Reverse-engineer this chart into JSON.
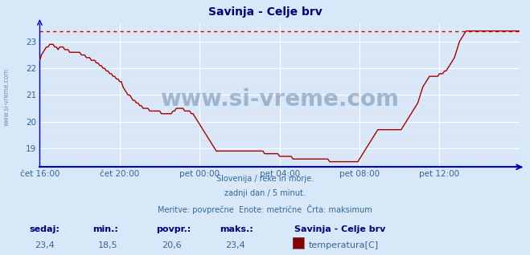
{
  "title": "Savinja - Celje brv",
  "title_color": "#000080",
  "bg_color": "#d8e8f8",
  "plot_bg_color": "#d8e8f8",
  "line_color": "#aa0000",
  "max_line_color": "#cc0000",
  "axis_color": "#0000cc",
  "tick_color": "#336699",
  "grid_color": "#ffffff",
  "grid_minor_color": "#ffcccc",
  "watermark": "www.si-vreme.com",
  "watermark_color": "#1a3a6a",
  "subtitle_lines": [
    "Slovenija / reke in morje.",
    "zadnji dan / 5 minut.",
    "Meritve: povprečne  Enote: metrične  Črta: maksimum"
  ],
  "subtitle_color": "#336699",
  "legend_title": "Savinja - Celje brv",
  "legend_label": "temperatura[C]",
  "legend_color": "#880000",
  "stats_labels": [
    "sedaj:",
    "min.:",
    "povpr.:",
    "maks.:"
  ],
  "stats_values": [
    "23,4",
    "18,5",
    "20,6",
    "23,4"
  ],
  "stats_label_color": "#000080",
  "stats_value_color": "#336699",
  "ylim": [
    18.3,
    23.7
  ],
  "yticks": [
    19,
    20,
    21,
    22,
    23
  ],
  "max_value": 23.4,
  "xtick_labels": [
    "čet 16:00",
    "čet 20:00",
    "pet 00:00",
    "pet 04:00",
    "pet 08:00",
    "pet 12:00"
  ],
  "xtick_positions": [
    0,
    48,
    96,
    144,
    192,
    240
  ],
  "total_points": 289,
  "temperature_data": [
    22.3,
    22.5,
    22.6,
    22.7,
    22.8,
    22.8,
    22.9,
    22.9,
    22.9,
    22.8,
    22.8,
    22.7,
    22.8,
    22.8,
    22.8,
    22.7,
    22.7,
    22.7,
    22.6,
    22.6,
    22.6,
    22.6,
    22.6,
    22.6,
    22.6,
    22.5,
    22.5,
    22.5,
    22.4,
    22.4,
    22.4,
    22.3,
    22.3,
    22.3,
    22.2,
    22.2,
    22.1,
    22.1,
    22.0,
    22.0,
    21.9,
    21.9,
    21.8,
    21.8,
    21.7,
    21.7,
    21.6,
    21.6,
    21.5,
    21.5,
    21.3,
    21.2,
    21.1,
    21.0,
    21.0,
    20.9,
    20.8,
    20.8,
    20.7,
    20.7,
    20.6,
    20.6,
    20.5,
    20.5,
    20.5,
    20.5,
    20.4,
    20.4,
    20.4,
    20.4,
    20.4,
    20.4,
    20.4,
    20.3,
    20.3,
    20.3,
    20.3,
    20.3,
    20.3,
    20.3,
    20.4,
    20.4,
    20.5,
    20.5,
    20.5,
    20.5,
    20.5,
    20.4,
    20.4,
    20.4,
    20.4,
    20.3,
    20.3,
    20.2,
    20.1,
    20.0,
    19.9,
    19.8,
    19.7,
    19.6,
    19.5,
    19.4,
    19.3,
    19.2,
    19.1,
    19.0,
    18.9,
    18.9,
    18.9,
    18.9,
    18.9,
    18.9,
    18.9,
    18.9,
    18.9,
    18.9,
    18.9,
    18.9,
    18.9,
    18.9,
    18.9,
    18.9,
    18.9,
    18.9,
    18.9,
    18.9,
    18.9,
    18.9,
    18.9,
    18.9,
    18.9,
    18.9,
    18.9,
    18.9,
    18.9,
    18.8,
    18.8,
    18.8,
    18.8,
    18.8,
    18.8,
    18.8,
    18.8,
    18.8,
    18.7,
    18.7,
    18.7,
    18.7,
    18.7,
    18.7,
    18.7,
    18.7,
    18.6,
    18.6,
    18.6,
    18.6,
    18.6,
    18.6,
    18.6,
    18.6,
    18.6,
    18.6,
    18.6,
    18.6,
    18.6,
    18.6,
    18.6,
    18.6,
    18.6,
    18.6,
    18.6,
    18.6,
    18.6,
    18.6,
    18.5,
    18.5,
    18.5,
    18.5,
    18.5,
    18.5,
    18.5,
    18.5,
    18.5,
    18.5,
    18.5,
    18.5,
    18.5,
    18.5,
    18.5,
    18.5,
    18.5,
    18.5,
    18.6,
    18.7,
    18.8,
    18.9,
    19.0,
    19.1,
    19.2,
    19.3,
    19.4,
    19.5,
    19.6,
    19.7,
    19.7,
    19.7,
    19.7,
    19.7,
    19.7,
    19.7,
    19.7,
    19.7,
    19.7,
    19.7,
    19.7,
    19.7,
    19.7,
    19.7,
    19.8,
    19.9,
    20.0,
    20.1,
    20.2,
    20.3,
    20.4,
    20.5,
    20.6,
    20.7,
    20.9,
    21.1,
    21.3,
    21.4,
    21.5,
    21.6,
    21.7,
    21.7,
    21.7,
    21.7,
    21.7,
    21.7,
    21.8,
    21.8,
    21.8,
    21.9,
    21.9,
    22.0,
    22.1,
    22.2,
    22.3,
    22.4,
    22.6,
    22.8,
    23.0,
    23.1,
    23.2,
    23.3,
    23.4,
    23.4,
    23.4,
    23.4,
    23.4,
    23.4,
    23.4,
    23.4,
    23.4,
    23.4,
    23.4,
    23.4,
    23.4,
    23.4,
    23.4,
    23.4,
    23.4,
    23.4,
    23.4,
    23.4,
    23.4,
    23.4,
    23.4,
    23.4,
    23.4,
    23.4,
    23.4,
    23.4,
    23.4,
    23.4,
    23.4,
    23.4,
    23.4
  ]
}
